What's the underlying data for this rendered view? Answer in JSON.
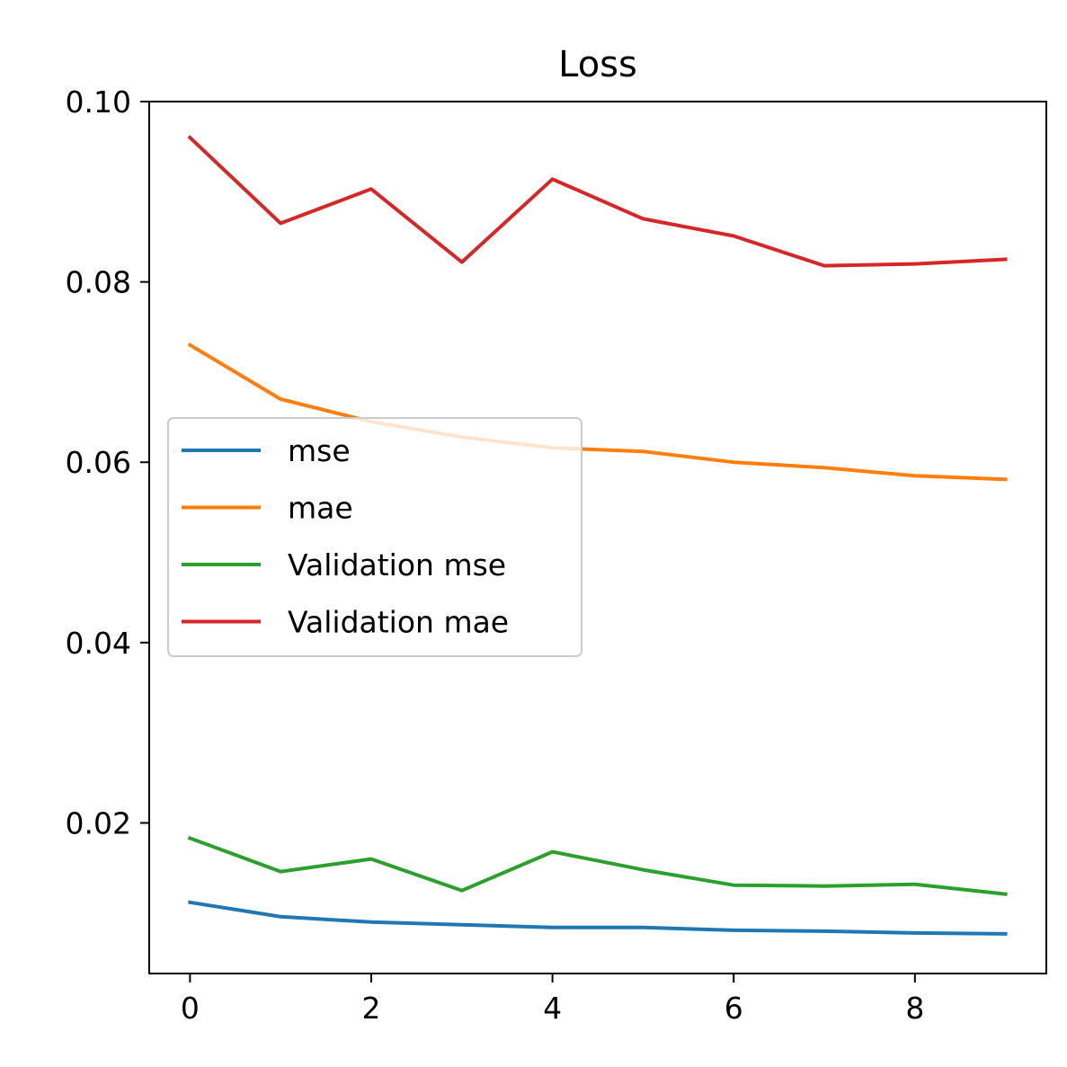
{
  "chart_data": {
    "type": "line",
    "title": "Loss",
    "xlabel": "",
    "ylabel": "",
    "x": [
      0,
      1,
      2,
      3,
      4,
      5,
      6,
      7,
      8,
      9
    ],
    "xlim": [
      -0.45,
      9.45
    ],
    "ylim": [
      0.0033,
      0.1
    ],
    "xticks": [
      0,
      2,
      4,
      6,
      8
    ],
    "xtick_labels": [
      "0",
      "2",
      "4",
      "6",
      "8"
    ],
    "yticks": [
      0.02,
      0.04,
      0.06,
      0.08,
      0.1
    ],
    "ytick_labels": [
      "0.02",
      "0.04",
      "0.06",
      "0.08",
      "0.10"
    ],
    "grid": false,
    "legend_position": "center-left",
    "series": [
      {
        "name": "mse",
        "color": "#1f77b4",
        "values": [
          0.0112,
          0.0096,
          0.009,
          0.0087,
          0.0084,
          0.0084,
          0.0081,
          0.008,
          0.0078,
          0.0077
        ]
      },
      {
        "name": "mae",
        "color": "#ff7f0e",
        "values": [
          0.073,
          0.067,
          0.0645,
          0.0628,
          0.0616,
          0.0612,
          0.06,
          0.0594,
          0.0585,
          0.0581
        ]
      },
      {
        "name": "Validation mse",
        "color": "#2ca02c",
        "values": [
          0.0183,
          0.0146,
          0.016,
          0.0125,
          0.0168,
          0.0148,
          0.0131,
          0.013,
          0.0132,
          0.0121
        ]
      },
      {
        "name": "Validation mae",
        "color": "#d62728",
        "values": [
          0.096,
          0.0865,
          0.0903,
          0.0822,
          0.0914,
          0.087,
          0.0851,
          0.0818,
          0.082,
          0.0825
        ]
      }
    ]
  }
}
